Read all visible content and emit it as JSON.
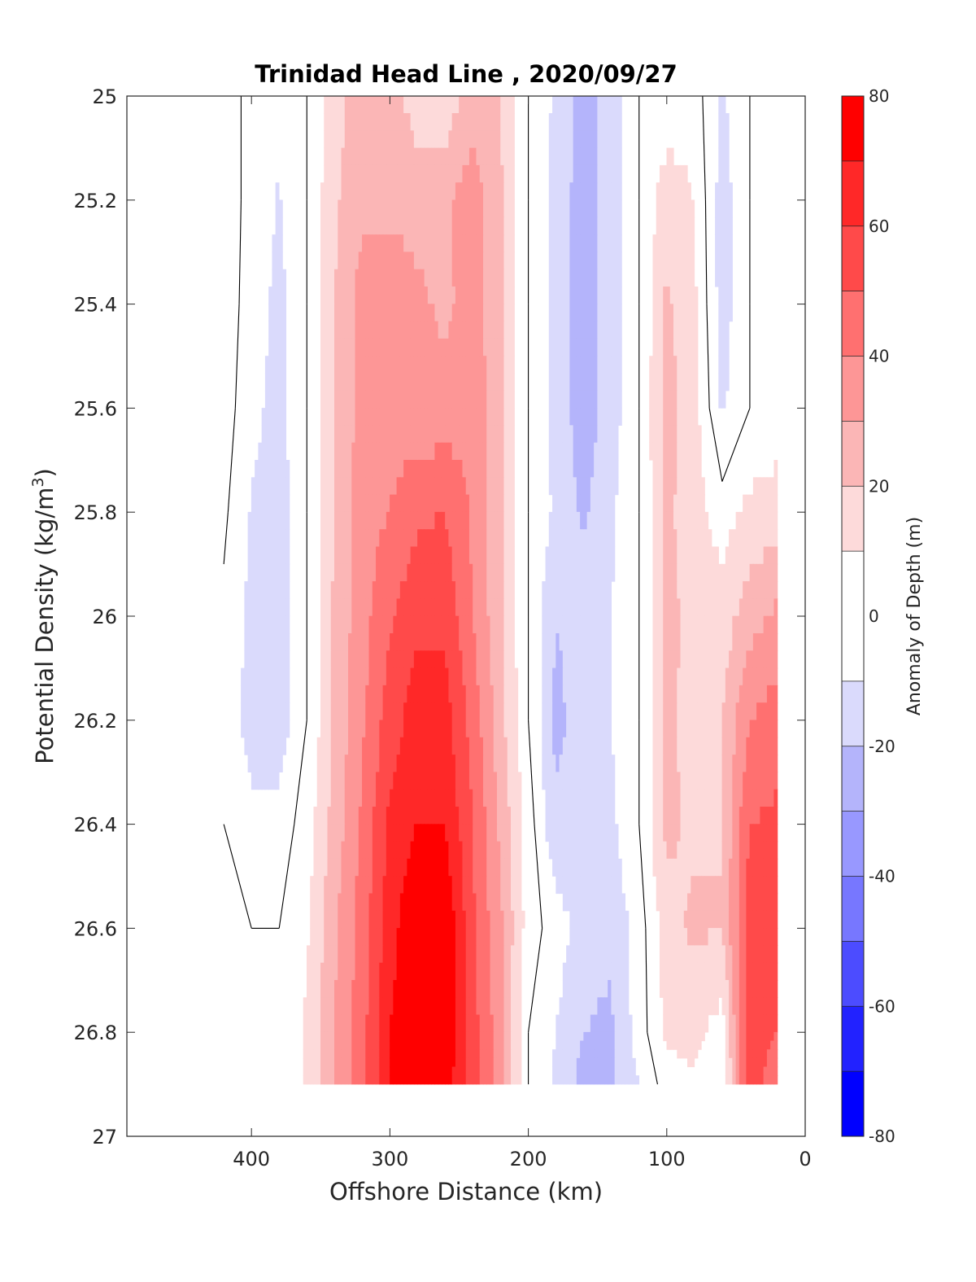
{
  "chart_data": {
    "type": "heatmap",
    "subtype": "filled-contour",
    "title": "Trinidad Head Line , 2020/09/27",
    "xlabel": "Offshore Distance (km)",
    "ylabel": "Potential Density (kg/m",
    "ylabel_superscript": "3",
    "ylabel_suffix": ")",
    "colorbar_label": "Anomaly of Depth (m)",
    "xlim": [
      490,
      0
    ],
    "x_reversed": true,
    "ylim": [
      25,
      27
    ],
    "y_reversed": true,
    "xticks": [
      400,
      300,
      200,
      100,
      0
    ],
    "xtick_labels": [
      "400",
      "300",
      "200",
      "100",
      "0"
    ],
    "yticks": [
      25,
      25.2,
      25.4,
      25.6,
      25.8,
      26,
      26.2,
      26.4,
      26.6,
      26.8,
      27
    ],
    "ytick_labels": [
      "25",
      "25.2",
      "25.4",
      "25.6",
      "25.8",
      "26",
      "26.2",
      "26.4",
      "26.6",
      "26.8",
      "27"
    ],
    "clim": [
      -80,
      80
    ],
    "level_edges": [
      -80,
      -70,
      -60,
      -50,
      -40,
      -30,
      -20,
      -10,
      10,
      20,
      30,
      40,
      50,
      60,
      70,
      80
    ],
    "colorbar_ticks": [
      80,
      60,
      40,
      20,
      0,
      -20,
      -40,
      -60,
      -80
    ],
    "colorbar_tick_labels": [
      "80",
      "60",
      "40",
      "20",
      "0",
      "-20",
      "-40",
      "-60",
      "-80"
    ],
    "colors": {
      "neg": [
        "#0000ff",
        "#2222ff",
        "#4c4cff",
        "#7777ff",
        "#9898ff",
        "#b4b4fb",
        "#dadafc"
      ],
      "zero": "#ffffff",
      "pos": [
        "#fddada",
        "#fbb6b6",
        "#fd9696",
        "#ff7070",
        "#ff4a4a",
        "#ff2828",
        "#ff0000"
      ]
    },
    "grid": false,
    "legend": "colorbar-right",
    "data_extent": {
      "x": [
        420,
        20
      ],
      "y": [
        25,
        26.9
      ]
    },
    "station_x_km": [
      420,
      400,
      380,
      360,
      340,
      320,
      300,
      280,
      260,
      240,
      220,
      200,
      180,
      160,
      140,
      120,
      100,
      80,
      60,
      40,
      20
    ],
    "density_levels": [
      25,
      25.2,
      25.4,
      25.6,
      25.8,
      26,
      26.2,
      26.4,
      26.6,
      26.8,
      26.9
    ],
    "depth_anomaly_m": [
      [
        5,
        -3,
        -6,
        0,
        16,
        26,
        24,
        15,
        13,
        25,
        20,
        0,
        -12,
        -24,
        -15,
        0,
        3,
        5,
        -12,
        0,
        5
      ],
      [
        5,
        -3,
        -11,
        0,
        18,
        28,
        28,
        26,
        28,
        36,
        22,
        0,
        -14,
        -25,
        -15,
        0,
        16,
        10,
        -15,
        0,
        5
      ],
      [
        5,
        -4,
        -13,
        0,
        20,
        34,
        36,
        32,
        28,
        34,
        22,
        0,
        -14,
        -25,
        -15,
        0,
        22,
        12,
        -15,
        0,
        5
      ],
      [
        5,
        -7,
        -14,
        0,
        20,
        34,
        36,
        32,
        34,
        38,
        22,
        0,
        -14,
        -26,
        -15,
        0,
        24,
        14,
        -12,
        0,
        5
      ],
      [
        2,
        -11,
        -15,
        0,
        20,
        36,
        40,
        48,
        50,
        38,
        22,
        0,
        -12,
        -22,
        -12,
        0,
        22,
        15,
        5,
        13,
        14
      ],
      [
        -2,
        -13,
        -17,
        0,
        22,
        36,
        48,
        58,
        58,
        40,
        22,
        0,
        -20,
        -15,
        -10,
        0,
        22,
        18,
        14,
        26,
        32
      ],
      [
        -3,
        -14,
        -16,
        0,
        22,
        38,
        55,
        65,
        64,
        46,
        24,
        0,
        -23,
        -15,
        -10,
        0,
        22,
        17,
        20,
        40,
        46
      ],
      [
        0,
        -8,
        -6,
        5,
        24,
        42,
        62,
        70,
        70,
        50,
        28,
        5,
        -18,
        -15,
        -12,
        0,
        22,
        18,
        20,
        50,
        52
      ],
      [
        0,
        0,
        0,
        8,
        28,
        44,
        66,
        80,
        80,
        52,
        32,
        5,
        -5,
        -15,
        -18,
        -5,
        16,
        22,
        20,
        56,
        60
      ],
      [
        0,
        0,
        0,
        12,
        30,
        46,
        70,
        80,
        80,
        54,
        34,
        0,
        -10,
        -20,
        -22,
        -5,
        12,
        14,
        5,
        58,
        50
      ],
      [
        0,
        0,
        0,
        12,
        30,
        46,
        70,
        75,
        75,
        56,
        34,
        0,
        -12,
        -24,
        -22,
        -10,
        5,
        8,
        0,
        60,
        40
      ]
    ]
  }
}
